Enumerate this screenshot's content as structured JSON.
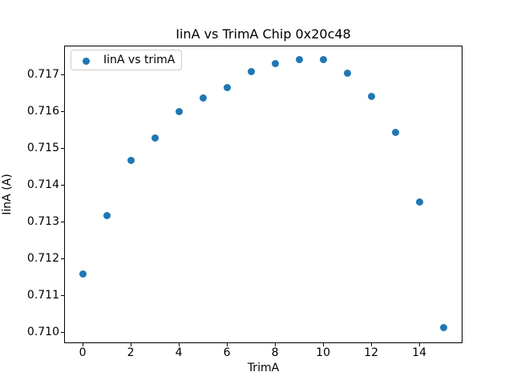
{
  "chart_data": {
    "type": "scatter",
    "title": "IinA vs TrimA Chip 0x20c48",
    "xlabel": "TrimA",
    "ylabel": "IinA (A)",
    "legend": {
      "position": "upper left",
      "entries": [
        {
          "label": "IinA vs trimA",
          "marker": "circle",
          "color": "#1f77b4"
        }
      ]
    },
    "series": [
      {
        "name": "IinA vs trimA",
        "color": "#1f77b4",
        "x": [
          0,
          1,
          2,
          3,
          4,
          5,
          6,
          7,
          8,
          9,
          10,
          11,
          12,
          13,
          14,
          15
        ],
        "y": [
          0.71158,
          0.71316,
          0.71467,
          0.71528,
          0.716,
          0.71637,
          0.71664,
          0.71709,
          0.71731,
          0.71741,
          0.7174,
          0.71703,
          0.7164,
          0.71543,
          0.71354,
          0.71012
        ]
      }
    ],
    "xlim": [
      -0.77,
      15.78
    ],
    "ylim": [
      0.70971,
      0.71778
    ],
    "xticks": [
      0,
      2,
      4,
      6,
      8,
      10,
      12,
      14
    ],
    "xtick_labels": [
      "0",
      "2",
      "4",
      "6",
      "8",
      "10",
      "12",
      "14"
    ],
    "yticks": [
      0.71,
      0.711,
      0.712,
      0.713,
      0.714,
      0.715,
      0.716,
      0.717
    ],
    "ytick_labels": [
      "0.710",
      "0.711",
      "0.712",
      "0.713",
      "0.714",
      "0.715",
      "0.716",
      "0.717"
    ],
    "grid": false,
    "marker_color": "#1f77b4",
    "background_color": "#ffffff"
  }
}
